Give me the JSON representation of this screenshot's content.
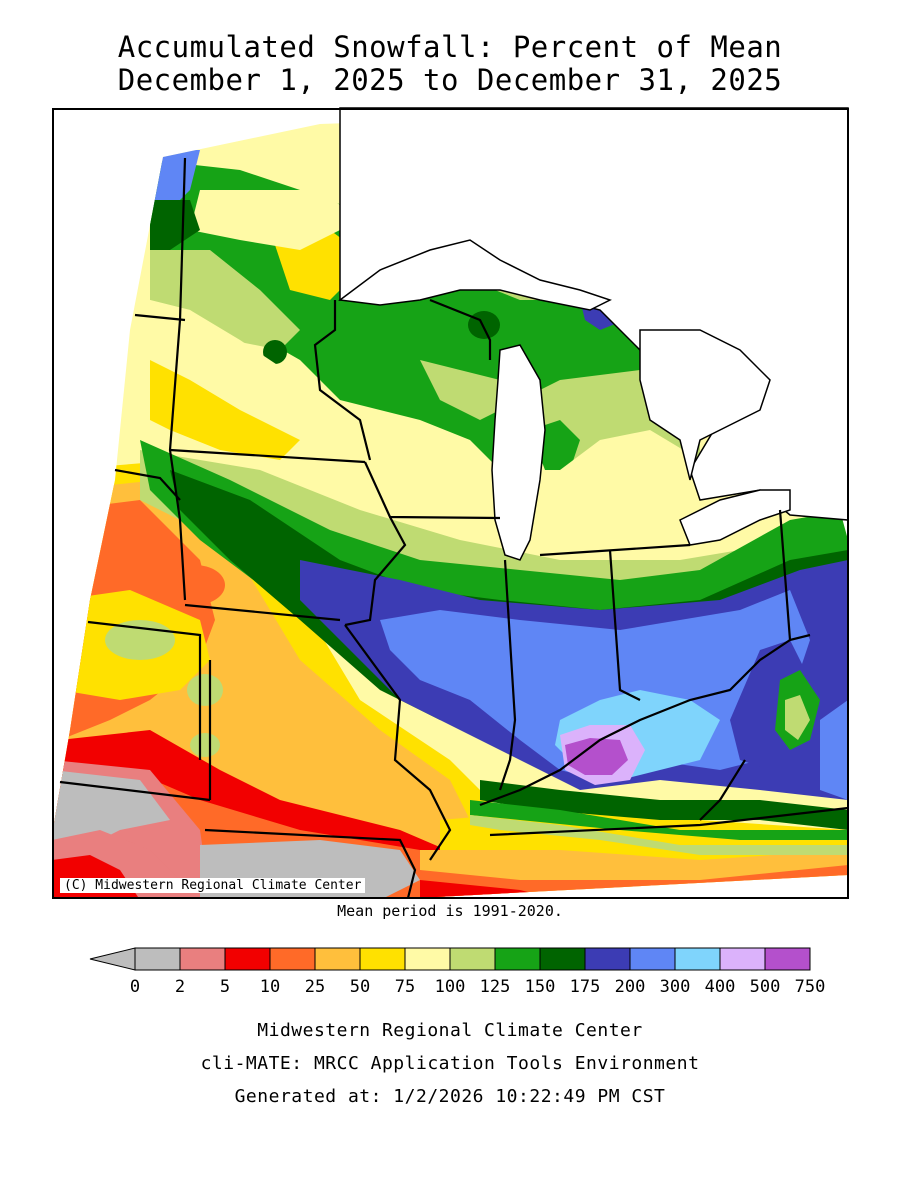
{
  "title": {
    "line1": "Accumulated Snowfall: Percent of Mean",
    "line2": "December 1, 2025 to December 31, 2025"
  },
  "map": {
    "credit": "(C) Midwestern Regional Climate Center",
    "mean_period_note": "Mean period is 1991-2020.",
    "colors": {
      "water": "#ffffff",
      "c0": "#bdbdbd",
      "c2": "#e97f7f",
      "c5": "#f20000",
      "c10": "#ff6a28",
      "c25": "#ffbf3c",
      "c50": "#ffe100",
      "c75": "#fffaa6",
      "c100": "#bfdb72",
      "c125": "#16a316",
      "c150": "#006400",
      "c175": "#3c3cb4",
      "c200": "#5f86f5",
      "c300": "#7fd4fc",
      "c400": "#dbb2fb",
      "c500": "#b450cc"
    }
  },
  "legend": {
    "tick_labels": [
      "0",
      "2",
      "5",
      "10",
      "25",
      "50",
      "75",
      "100",
      "125",
      "150",
      "175",
      "200",
      "300",
      "400",
      "500",
      "750"
    ],
    "colors": [
      "#bdbdbd",
      "#e97f7f",
      "#f20000",
      "#ff6a28",
      "#ffbf3c",
      "#ffe100",
      "#fffaa6",
      "#bfdb72",
      "#16a316",
      "#006400",
      "#3c3cb4",
      "#5f86f5",
      "#7fd4fc",
      "#dbb2fb",
      "#b450cc"
    ],
    "underflow_color": "#bdbdbd"
  },
  "footer": {
    "line1": "Midwestern Regional Climate Center",
    "line2": "cli-MATE: MRCC Application Tools Environment",
    "line3": "Generated at: 1/2/2026 10:22:49 PM CST"
  }
}
